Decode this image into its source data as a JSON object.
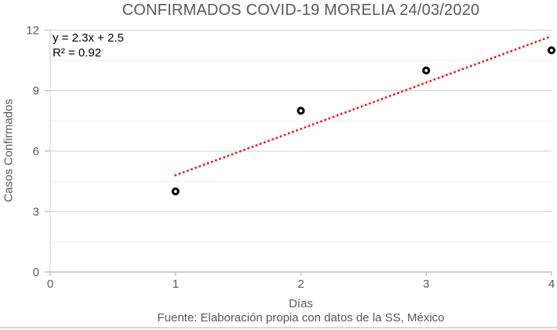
{
  "chart": {
    "title": "CONFIRMADOS COVID-19 MORELIA 24/03/2020",
    "equation": "y = 2.3x + 2.5",
    "r_squared": "R² = 0.92",
    "footer": "Fuente: Elaboración propia con datos de la SS, México"
  },
  "chart_data": {
    "type": "scatter",
    "title": "CONFIRMADOS COVID-19 MORELIA 24/03/2020",
    "xlabel": "Días",
    "ylabel": "Casos Confirmados",
    "x": [
      1,
      2,
      3,
      4
    ],
    "y": [
      4,
      8,
      10,
      11
    ],
    "xlim": [
      0,
      4
    ],
    "ylim": [
      0,
      12
    ],
    "xticks": [
      0,
      1,
      2,
      3,
      4
    ],
    "yticks": [
      0,
      3,
      6,
      9,
      12
    ],
    "minor_yticks": [
      1.5,
      4.5,
      7.5,
      10.5
    ],
    "grid": "horizontal major+minor on",
    "legend": "none",
    "trendline": {
      "slope": 2.3,
      "intercept": 2.5,
      "r2": 0.92,
      "x_range": [
        1,
        4
      ],
      "style": "dotted",
      "color": "#FF0000"
    },
    "marker": {
      "shape": "open-circle-ring",
      "color": "#000000"
    },
    "annotations": [
      "y = 2.3x + 2.5",
      "R² = 0.92"
    ],
    "source_note": "Fuente: Elaboración propia con datos de la SS, México"
  },
  "colors": {
    "title_text": "#595959",
    "axis_text": "#595959",
    "annotation_text": "#000000",
    "axis_line": "#BFBFBF",
    "major_grid": "#D9D9D9",
    "minor_grid": "#F0F0F0",
    "trendline": "#FF0000",
    "marker": "#000000",
    "background": "#FFFFFF"
  }
}
